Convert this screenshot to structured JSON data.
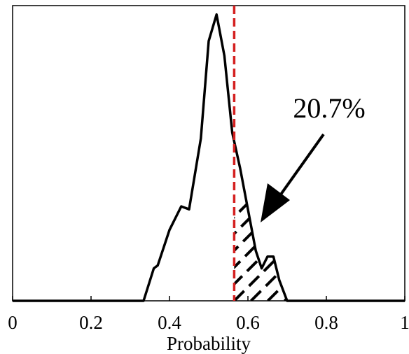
{
  "chart_data": {
    "type": "line",
    "xlabel": "Probability",
    "x": [
      0,
      0.1,
      0.2,
      0.3,
      0.334,
      0.36,
      0.37,
      0.4,
      0.43,
      0.45,
      0.48,
      0.5,
      0.52,
      0.54,
      0.56,
      0.58,
      0.6,
      0.62,
      0.635,
      0.65,
      0.665,
      0.68,
      0.7,
      0.72,
      0.8,
      0.9,
      1
    ],
    "series": [
      {
        "color": "#000000",
        "values": [
          0,
          0,
          0,
          0,
          0,
          0.11,
          0.12,
          0.24,
          0.32,
          0.31,
          0.55,
          0.88,
          0.97,
          0.83,
          0.57,
          0.45,
          0.31,
          0.17,
          0.11,
          0.15,
          0.15,
          0.07,
          0,
          0,
          0,
          0,
          0
        ]
      }
    ],
    "threshold": 0.565,
    "threshold_color": "#d42020",
    "annotation": "20.7%",
    "xlim": [
      0,
      1
    ],
    "xticks": [
      0,
      0.2,
      0.4,
      0.6,
      0.8,
      1
    ],
    "ylim": [
      0,
      1
    ]
  }
}
